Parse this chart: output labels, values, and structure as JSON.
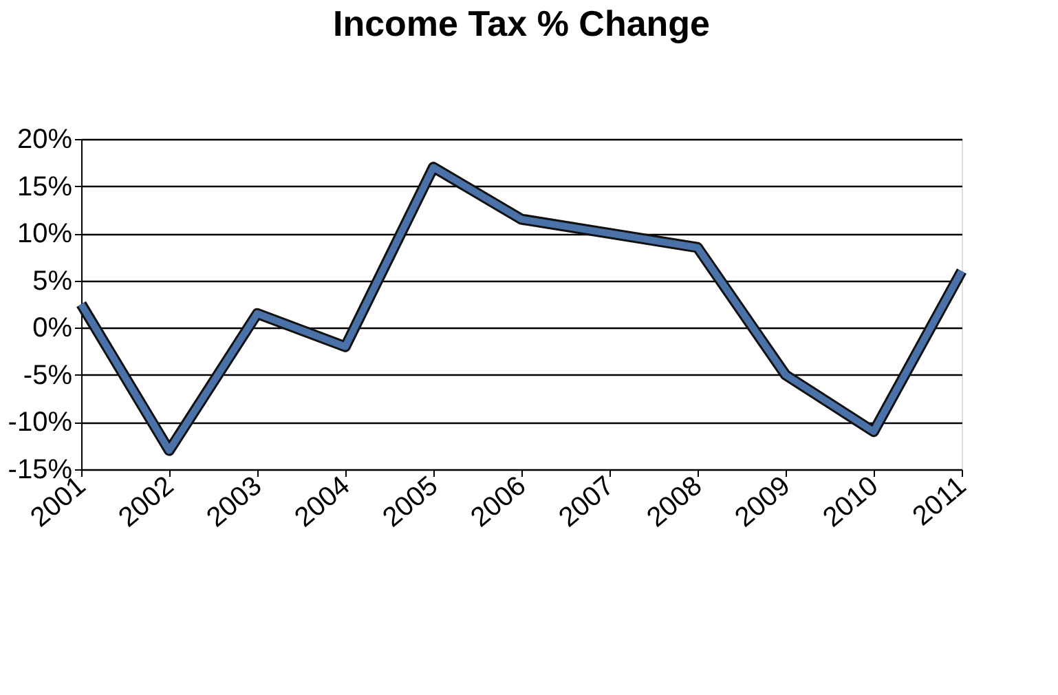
{
  "chart_data": {
    "type": "line",
    "title": "Income Tax % Change",
    "categories": [
      "2001",
      "2002",
      "2003",
      "2004",
      "2005",
      "2006",
      "2007",
      "2008",
      "2009",
      "2010",
      "2011"
    ],
    "series": [
      {
        "color": "#4a72a8",
        "values": [
          2.5,
          -13,
          1.5,
          -2,
          17,
          11.5,
          10,
          8.5,
          -5,
          -11,
          6
        ]
      }
    ],
    "ylim": [
      -15,
      20
    ],
    "yticks": [
      {
        "value": -15,
        "label": "-15%"
      },
      {
        "value": -10,
        "label": "-10%"
      },
      {
        "value": -5,
        "label": "-5%"
      },
      {
        "value": 0,
        "label": "0%"
      },
      {
        "value": 5,
        "label": "5%"
      },
      {
        "value": 10,
        "label": "10%"
      },
      {
        "value": 15,
        "label": "15%"
      },
      {
        "value": 20,
        "label": "20%"
      }
    ],
    "grid": "y",
    "marker": "none",
    "line_style": "solid"
  }
}
